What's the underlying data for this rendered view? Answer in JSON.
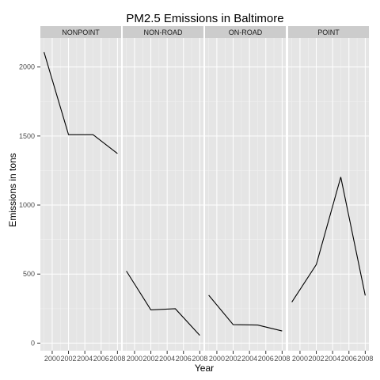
{
  "chart_data": {
    "type": "line",
    "title": "PM2.5 Emissions in Baltimore",
    "xlabel": "Year",
    "ylabel": "Emissions in tons",
    "x": [
      1999,
      2002,
      2005,
      2008
    ],
    "x_ticks": [
      2000,
      2002,
      2004,
      2006,
      2008
    ],
    "xlim": [
      1998.55,
      2008.45
    ],
    "y_ticks": [
      0,
      500,
      1000,
      1500,
      2000
    ],
    "ylim": [
      -55,
      2210
    ],
    "grid": true,
    "line_color": "#000000",
    "panel_background": "#e5e5e5",
    "strip_background": "#cccccc",
    "series": [
      {
        "name": "NONPOINT",
        "values": [
          2107,
          1510,
          1510,
          1373
        ]
      },
      {
        "name": "NON-ROAD",
        "values": [
          522,
          241,
          249,
          56
        ]
      },
      {
        "name": "ON-ROAD",
        "values": [
          347,
          134,
          131,
          88
        ]
      },
      {
        "name": "POINT",
        "values": [
          297,
          569,
          1203,
          345
        ]
      }
    ]
  }
}
